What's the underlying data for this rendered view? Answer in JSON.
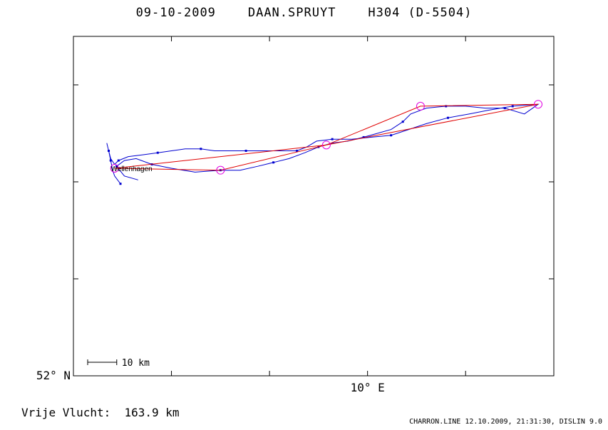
{
  "title": "09-10-2009    DAAN.SPRUYT    H304 (D-5504)",
  "footer": {
    "distance_label": "Vrije Vlucht:",
    "distance_value": "163.9 km",
    "credit": "CHARRON.LINE 12.10.2009, 21:31:30, DISLIN 9.0"
  },
  "chart_data": {
    "type": "line",
    "title": "09-10-2009    DAAN.SPRUYT    H304 (D-5504)",
    "x_axis": {
      "unit": "degrees longitude E",
      "range": [
        8.5,
        10.95
      ],
      "tick_label": "10° E",
      "tick_value": 10.0
    },
    "y_axis": {
      "unit": "degrees latitude N",
      "range": [
        52.0,
        53.75
      ],
      "tick_label": "52° N",
      "tick_value": 52.0
    },
    "grid": false,
    "scale_bar": {
      "label": "10 km",
      "length_km": 10
    },
    "place_labels": [
      {
        "name": "Wellenhagen",
        "lon": 8.72,
        "lat": 53.07
      }
    ],
    "task": {
      "color": "#e00000",
      "points": [
        {
          "lon": 8.71,
          "lat": 53.07
        },
        {
          "lon": 9.25,
          "lat": 53.06
        },
        {
          "lon": 9.79,
          "lat": 53.19
        },
        {
          "lon": 10.27,
          "lat": 53.39
        },
        {
          "lon": 10.87,
          "lat": 53.4
        },
        {
          "lon": 9.79,
          "lat": 53.19
        },
        {
          "lon": 8.71,
          "lat": 53.07
        }
      ]
    },
    "turnpoints": {
      "color": "#e000e0",
      "points": [
        {
          "lon": 8.71,
          "lat": 53.07
        },
        {
          "lon": 9.25,
          "lat": 53.06
        },
        {
          "lon": 9.79,
          "lat": 53.19
        },
        {
          "lon": 10.27,
          "lat": 53.39
        },
        {
          "lon": 10.87,
          "lat": 53.4
        }
      ]
    },
    "track": {
      "color": "#0000d0",
      "points": [
        {
          "lon": 8.74,
          "lat": 52.99
        },
        {
          "lon": 8.71,
          "lat": 53.03
        },
        {
          "lon": 8.7,
          "lat": 53.06
        },
        {
          "lon": 8.69,
          "lat": 53.11
        },
        {
          "lon": 8.68,
          "lat": 53.16
        },
        {
          "lon": 8.67,
          "lat": 53.2
        },
        {
          "lon": 8.68,
          "lat": 53.16
        },
        {
          "lon": 8.69,
          "lat": 53.12
        },
        {
          "lon": 8.71,
          "lat": 53.09
        },
        {
          "lon": 8.73,
          "lat": 53.11
        },
        {
          "lon": 8.78,
          "lat": 53.13
        },
        {
          "lon": 8.86,
          "lat": 53.14
        },
        {
          "lon": 8.93,
          "lat": 53.15
        },
        {
          "lon": 9.0,
          "lat": 53.16
        },
        {
          "lon": 9.07,
          "lat": 53.17
        },
        {
          "lon": 9.15,
          "lat": 53.17
        },
        {
          "lon": 9.22,
          "lat": 53.16
        },
        {
          "lon": 9.3,
          "lat": 53.16
        },
        {
          "lon": 9.38,
          "lat": 53.16
        },
        {
          "lon": 9.46,
          "lat": 53.16
        },
        {
          "lon": 9.55,
          "lat": 53.16
        },
        {
          "lon": 9.64,
          "lat": 53.16
        },
        {
          "lon": 9.69,
          "lat": 53.18
        },
        {
          "lon": 9.74,
          "lat": 53.21
        },
        {
          "lon": 9.82,
          "lat": 53.22
        },
        {
          "lon": 9.92,
          "lat": 53.22
        },
        {
          "lon": 10.02,
          "lat": 53.23
        },
        {
          "lon": 10.12,
          "lat": 53.24
        },
        {
          "lon": 10.21,
          "lat": 53.27
        },
        {
          "lon": 10.3,
          "lat": 53.3
        },
        {
          "lon": 10.41,
          "lat": 53.33
        },
        {
          "lon": 10.52,
          "lat": 53.35
        },
        {
          "lon": 10.62,
          "lat": 53.37
        },
        {
          "lon": 10.74,
          "lat": 53.39
        },
        {
          "lon": 10.87,
          "lat": 53.4
        },
        {
          "lon": 10.8,
          "lat": 53.35
        },
        {
          "lon": 10.7,
          "lat": 53.38
        },
        {
          "lon": 10.6,
          "lat": 53.38
        },
        {
          "lon": 10.5,
          "lat": 53.39
        },
        {
          "lon": 10.4,
          "lat": 53.39
        },
        {
          "lon": 10.3,
          "lat": 53.38
        },
        {
          "lon": 10.22,
          "lat": 53.35
        },
        {
          "lon": 10.18,
          "lat": 53.31
        },
        {
          "lon": 10.12,
          "lat": 53.27
        },
        {
          "lon": 10.05,
          "lat": 53.25
        },
        {
          "lon": 9.98,
          "lat": 53.23
        },
        {
          "lon": 9.9,
          "lat": 53.21
        },
        {
          "lon": 9.82,
          "lat": 53.2
        },
        {
          "lon": 9.75,
          "lat": 53.18
        },
        {
          "lon": 9.68,
          "lat": 53.15
        },
        {
          "lon": 9.6,
          "lat": 53.12
        },
        {
          "lon": 9.52,
          "lat": 53.1
        },
        {
          "lon": 9.44,
          "lat": 53.08
        },
        {
          "lon": 9.35,
          "lat": 53.06
        },
        {
          "lon": 9.25,
          "lat": 53.06
        },
        {
          "lon": 9.12,
          "lat": 53.05
        },
        {
          "lon": 9.0,
          "lat": 53.07
        },
        {
          "lon": 8.9,
          "lat": 53.09
        },
        {
          "lon": 8.82,
          "lat": 53.12
        },
        {
          "lon": 8.76,
          "lat": 53.11
        },
        {
          "lon": 8.72,
          "lat": 53.08
        },
        {
          "lon": 8.76,
          "lat": 53.03
        },
        {
          "lon": 8.83,
          "lat": 53.01
        }
      ]
    }
  }
}
